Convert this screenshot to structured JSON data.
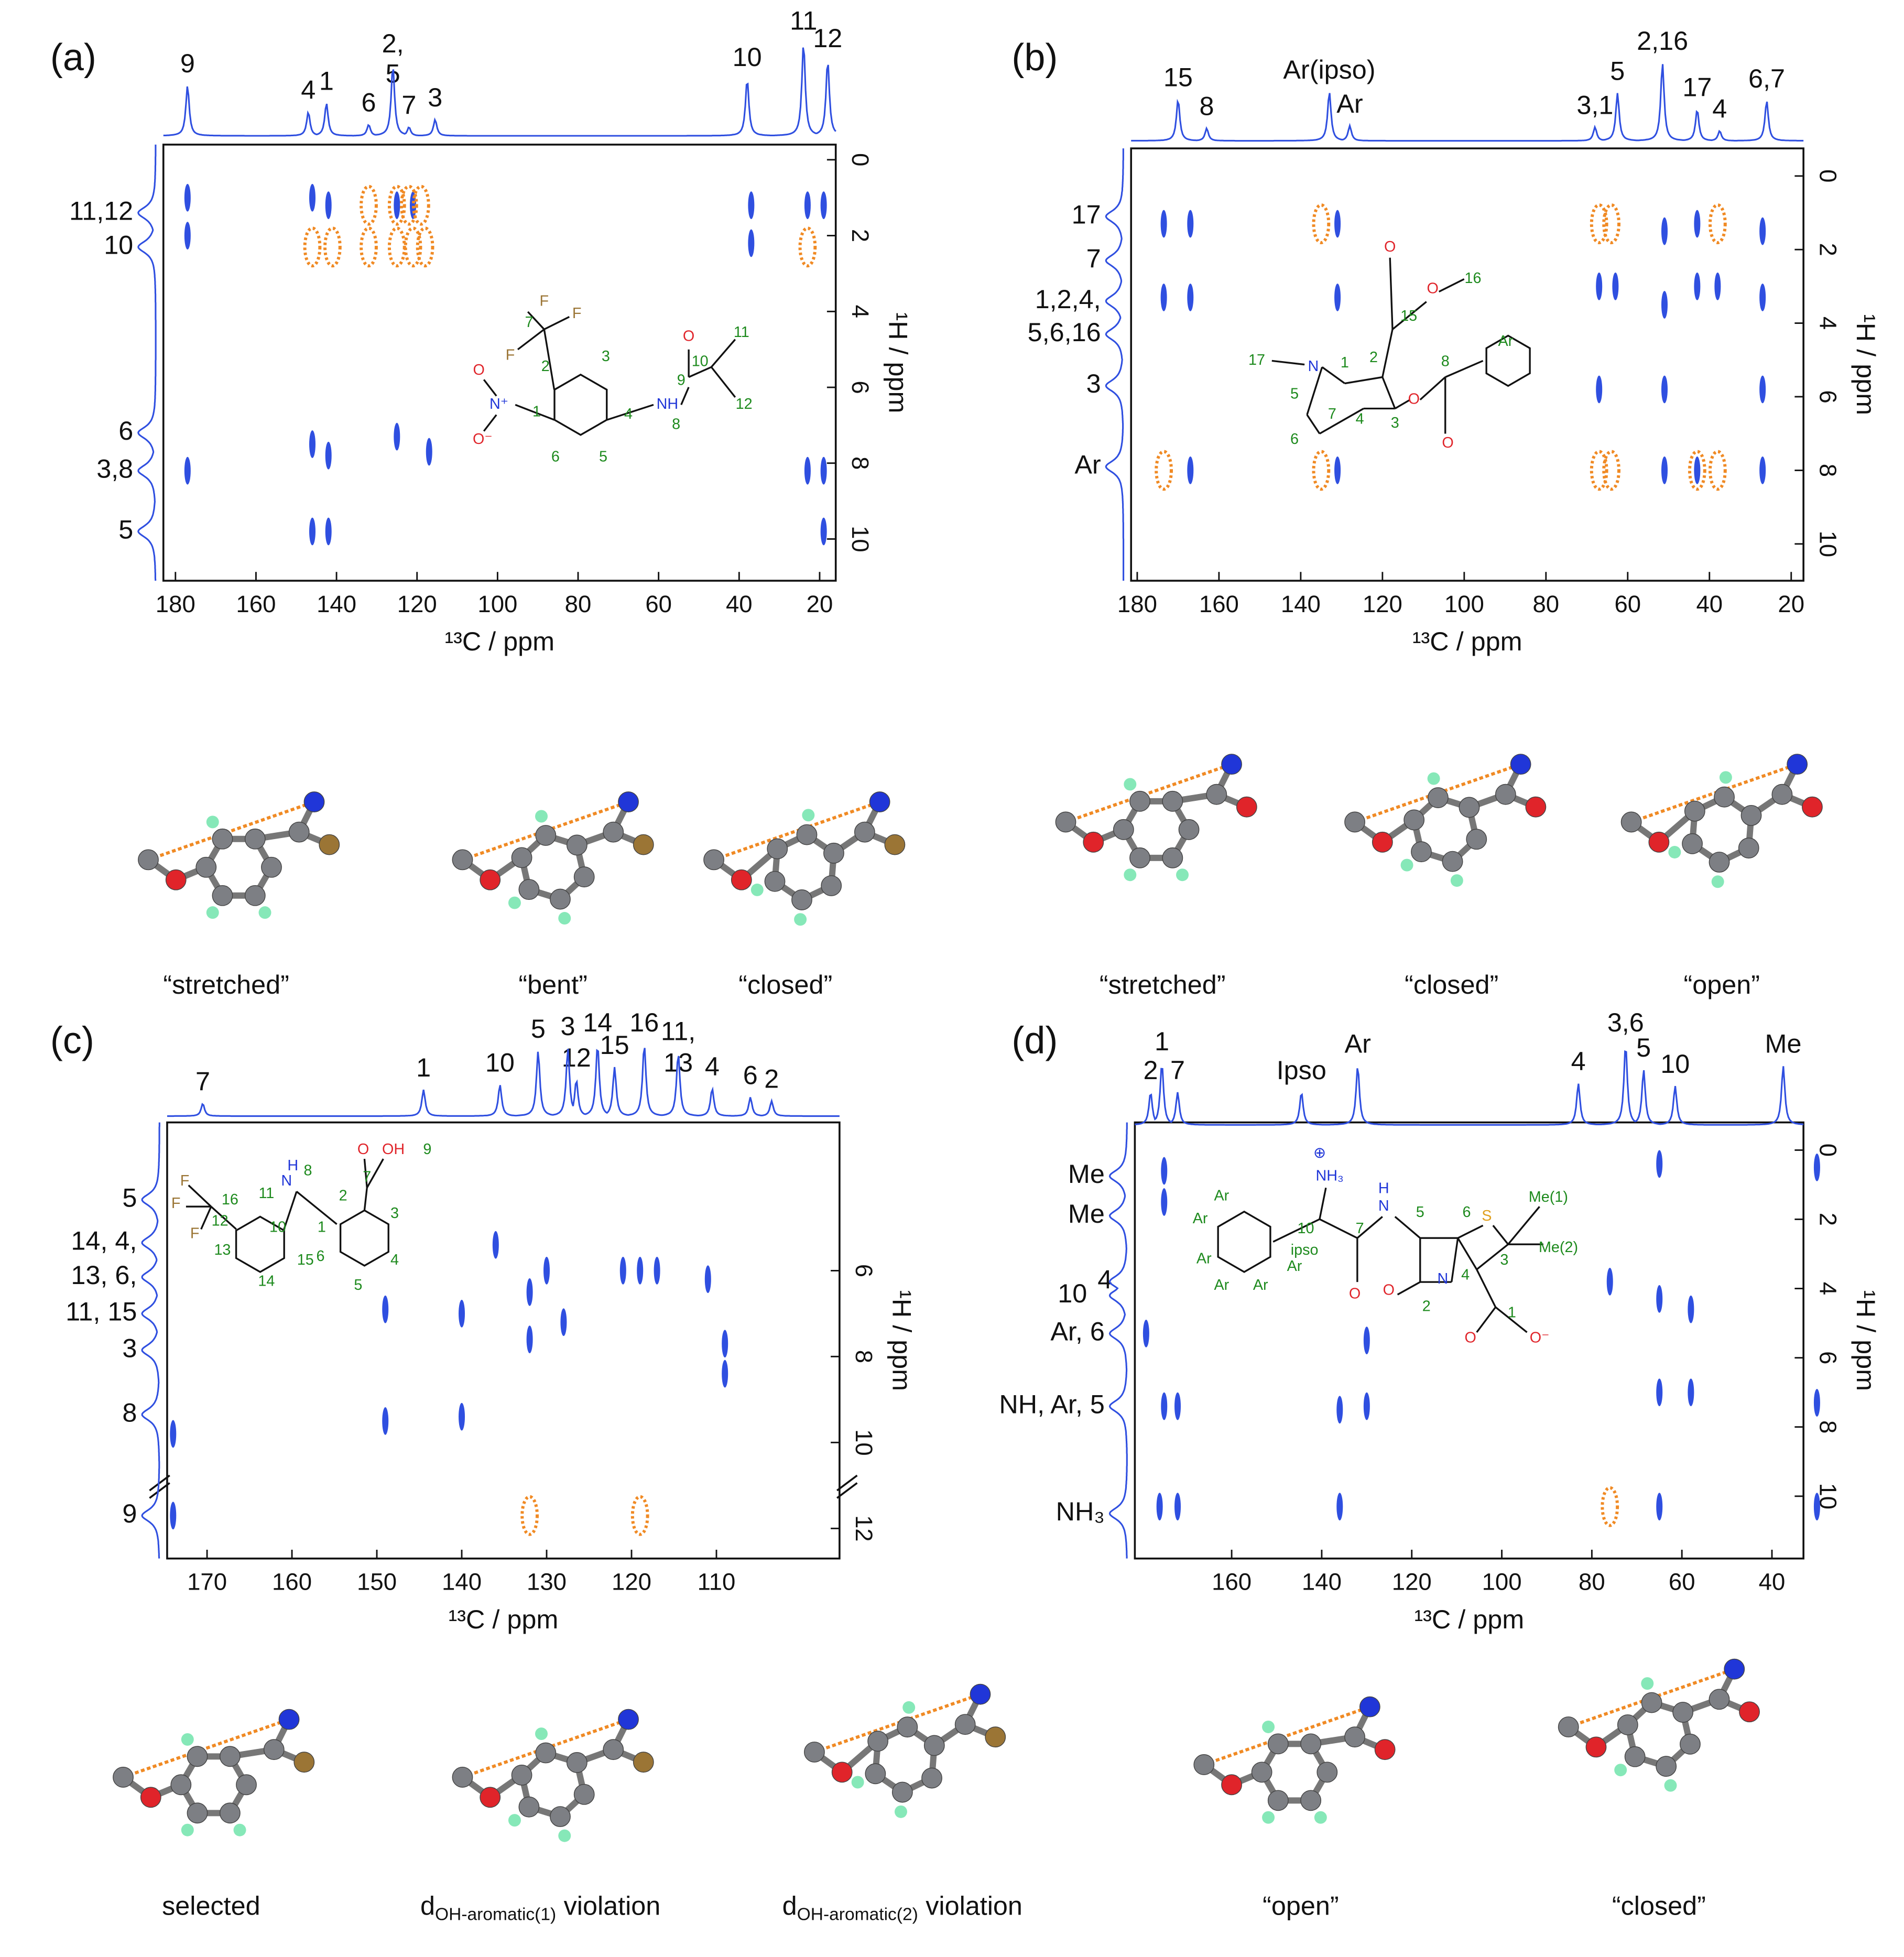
{
  "chart_data": [
    {
      "type": "contour",
      "panel_label": "(a)",
      "xlabel": "¹³C / ppm",
      "ylabel": "¹H / ppm",
      "xlim": [
        183,
        16
      ],
      "ylim": [
        -0.4,
        11.1
      ],
      "xticks": [
        180,
        160,
        140,
        120,
        100,
        80,
        60,
        40,
        20
      ],
      "yticks": [
        0,
        2,
        4,
        6,
        8,
        10
      ],
      "top_labels": [
        {
          "text": "9",
          "x": 177
        },
        {
          "text": "4",
          "x": 147
        },
        {
          "text": "1",
          "x": 142.5
        },
        {
          "text": "6",
          "x": 132
        },
        {
          "text": "2,",
          "x": 126
        },
        {
          "text": "5",
          "x": 126
        },
        {
          "text": "7",
          "x": 122
        },
        {
          "text": "3",
          "x": 115.5
        },
        {
          "text": "10",
          "x": 38
        },
        {
          "text": "11",
          "x": 24
        },
        {
          "text": "12",
          "x": 18
        }
      ],
      "side_labels": [
        {
          "text": "11,12",
          "y": 1.4
        },
        {
          "text": "10",
          "y": 2.3
        },
        {
          "text": "6",
          "y": 7.2
        },
        {
          "text": "3,8",
          "y": 8.2
        },
        {
          "text": "5",
          "y": 9.8
        }
      ],
      "series": [
        {
          "color": "#2f4fe0",
          "x": [
            177,
            177,
            177,
            146,
            146,
            146,
            142,
            142,
            142,
            125,
            125,
            121,
            117,
            37,
            37,
            23,
            19,
            19,
            23,
            19
          ],
          "y": [
            1,
            2,
            8.2,
            1,
            7.5,
            9.8,
            1.2,
            7.8,
            9.8,
            1.2,
            7.3,
            1.2,
            7.7,
            1.2,
            2.2,
            1.2,
            1.2,
            8.2,
            8.2,
            9.8
          ]
        },
        {
          "color": "#f08a24",
          "x": [
            132,
            125,
            122,
            119,
            146,
            141,
            132,
            125,
            121,
            118,
            23
          ],
          "y": [
            1.2,
            1.2,
            1.2,
            1.2,
            2.3,
            2.3,
            2.3,
            2.3,
            2.3,
            2.3,
            2.3
          ]
        }
      ],
      "structure_labels": [
        "F",
        "F",
        "F",
        "7",
        "2",
        "3",
        "N⁺",
        "O",
        "O⁻",
        "1",
        "6",
        "4",
        "5",
        "9",
        "O",
        "NH",
        "8",
        "10",
        "11",
        "12"
      ],
      "captions": [
        "“stretched”",
        "“bent”",
        "“closed”"
      ]
    },
    {
      "type": "contour",
      "panel_label": "(b)",
      "xlabel": "¹³C / ppm",
      "ylabel": "¹H / ppm",
      "xlim": [
        181.5,
        17
      ],
      "ylim": [
        -0.75,
        11
      ],
      "xticks": [
        180,
        160,
        140,
        120,
        100,
        80,
        60,
        40,
        20
      ],
      "yticks": [
        0,
        2,
        4,
        6,
        8,
        10
      ],
      "top_labels": [
        {
          "text": "15",
          "x": 170
        },
        {
          "text": "8",
          "x": 163
        },
        {
          "text": "Ar(ipso)",
          "x": 133
        },
        {
          "text": "Ar",
          "x": 128
        },
        {
          "text": "3,1",
          "x": 68
        },
        {
          "text": "5",
          "x": 62.5
        },
        {
          "text": "2,16",
          "x": 51.5
        },
        {
          "text": "17",
          "x": 43
        },
        {
          "text": "4",
          "x": 37.5
        },
        {
          "text": "6,7",
          "x": 26
        }
      ],
      "side_labels": [
        {
          "text": "17",
          "y": 1.1
        },
        {
          "text": "7",
          "y": 2.3
        },
        {
          "text": "1,2,4,",
          "y": 3.4
        },
        {
          "text": "5,6,16",
          "y": 4.3
        },
        {
          "text": "3",
          "y": 5.7
        },
        {
          "text": "Ar",
          "y": 7.9
        }
      ],
      "series": [
        {
          "color": "#2f4fe0",
          "x": [
            173.5,
            173.5,
            167,
            167,
            167,
            131,
            131,
            131,
            67,
            67,
            63,
            51,
            51,
            51,
            51,
            43,
            43,
            43,
            38,
            27,
            27,
            27,
            27
          ],
          "y": [
            1.3,
            3.3,
            1.3,
            3.3,
            8,
            1.3,
            3.3,
            8,
            3,
            5.8,
            3,
            1.5,
            3.5,
            5.8,
            8,
            1.3,
            3,
            8,
            3,
            1.5,
            3.3,
            5.8,
            8
          ]
        },
        {
          "color": "#f08a24",
          "x": [
            135,
            135,
            173.5,
            67,
            64,
            67,
            64,
            43,
            38,
            38
          ],
          "y": [
            1.3,
            8,
            8,
            1.3,
            1.3,
            8,
            8,
            8,
            8,
            1.3
          ]
        }
      ],
      "structure_labels": [
        "17",
        "N",
        "1",
        "2",
        "15",
        "O",
        "O",
        "16",
        "5",
        "7",
        "4",
        "3",
        "O",
        "8",
        "O",
        "Ar",
        "6"
      ],
      "captions": [
        "“stretched”",
        "“closed”",
        "“open”"
      ]
    },
    {
      "type": "contour",
      "panel_label": "(c)",
      "xlabel": "¹³C / ppm",
      "ylabel": "¹H / ppm",
      "xlim": [
        174.7,
        95.5
      ],
      "ylim": [
        2.55,
        12.7
      ],
      "xticks": [
        170,
        160,
        150,
        140,
        130,
        120,
        110
      ],
      "yticks": [
        6,
        8,
        10,
        12
      ],
      "top_labels": [
        {
          "text": "7",
          "x": 170.5
        },
        {
          "text": "1",
          "x": 144.5
        },
        {
          "text": "10",
          "x": 135.5
        },
        {
          "text": "5",
          "x": 131
        },
        {
          "text": "3",
          "x": 127.5
        },
        {
          "text": "12",
          "x": 126.5
        },
        {
          "text": "14",
          "x": 124
        },
        {
          "text": "15",
          "x": 122
        },
        {
          "text": "16",
          "x": 118.5
        },
        {
          "text": "11,",
          "x": 114.5
        },
        {
          "text": "13",
          "x": 114.5
        },
        {
          "text": "4",
          "x": 110.5
        },
        {
          "text": "6",
          "x": 106
        },
        {
          "text": "2",
          "x": 103.5
        }
      ],
      "side_labels": [
        {
          "text": "5",
          "y": 4.35
        },
        {
          "text": "14, 4,",
          "y": 5.35
        },
        {
          "text": "13, 6,",
          "y": 6.15
        },
        {
          "text": "11, 15",
          "y": 7
        },
        {
          "text": "3",
          "y": 7.85
        },
        {
          "text": "8",
          "y": 9.35
        },
        {
          "text": "9",
          "y": 11.7
        }
      ],
      "series": [
        {
          "color": "#2f4fe0",
          "x": [
            149,
            149,
            140,
            140,
            136,
            132,
            132,
            130,
            128,
            121,
            119,
            117,
            111,
            109,
            109,
            174,
            174
          ],
          "y": [
            6.9,
            9.5,
            7,
            9.4,
            5.4,
            6.5,
            7.6,
            6,
            7.2,
            6,
            6,
            6,
            6.2,
            7.7,
            8.4,
            9.8,
            11.7
          ]
        },
        {
          "color": "#f08a24",
          "x": [
            132,
            119
          ],
          "y": [
            11.7,
            11.7
          ]
        }
      ],
      "structure_labels": [
        "F",
        "F",
        "16",
        "F",
        "12",
        "11",
        "H",
        "8",
        "N",
        "13",
        "10",
        "14",
        "15",
        "1",
        "6",
        "2",
        "7",
        "O",
        "OH",
        "9",
        "3",
        "4",
        "5"
      ],
      "captions": [
        "selected",
        {
          "text": "d",
          "sub": "OH-aromatic(1)",
          "tail": "violation"
        },
        {
          "text": "d",
          "sub": "OH-aromatic(2)",
          "tail": "violation"
        }
      ]
    },
    {
      "type": "contour",
      "panel_label": "(d)",
      "xlabel": "¹³C / ppm",
      "ylabel": "¹H / ppm",
      "xlim": [
        181.5,
        33
      ],
      "ylim": [
        -0.8,
        11.8
      ],
      "xticks": [
        160,
        140,
        120,
        100,
        80,
        60,
        40
      ],
      "yticks": [
        0,
        2,
        4,
        6,
        8,
        10
      ],
      "top_labels": [
        {
          "text": "2",
          "x": 178
        },
        {
          "text": "1",
          "x": 175.5
        },
        {
          "text": "7",
          "x": 172
        },
        {
          "text": "Ipso",
          "x": 144.5
        },
        {
          "text": "Ar",
          "x": 132
        },
        {
          "text": "4",
          "x": 83
        },
        {
          "text": "3,6",
          "x": 72.5
        },
        {
          "text": "5",
          "x": 68.5
        },
        {
          "text": "10",
          "x": 61.5
        },
        {
          "text": "Me",
          "x": 37.5
        }
      ],
      "side_labels": [
        {
          "text": "Me",
          "y": 0.75
        },
        {
          "text": "Me",
          "y": 1.9
        },
        {
          "text": "10",
          "y": 4.2
        },
        {
          "text": "4",
          "y": 3.8
        },
        {
          "text": "Ar, 6",
          "y": 5.3
        },
        {
          "text": "NH, Ar, 5",
          "y": 7.4
        },
        {
          "text": "NH₃",
          "y": 10.5
        }
      ],
      "series": [
        {
          "color": "#2f4fe0",
          "x": [
            30,
            30,
            30,
            65,
            65,
            65,
            65,
            58,
            58,
            130,
            130,
            136,
            136,
            175,
            175,
            175,
            172,
            172,
            176,
            179,
            76
          ],
          "y": [
            0.5,
            7.3,
            10.3,
            0.4,
            4.3,
            7,
            10.3,
            4.6,
            7,
            5.5,
            7.4,
            7.5,
            10.3,
            0.6,
            1.5,
            7.4,
            7.4,
            10.3,
            10.3,
            5.3,
            3.8
          ]
        },
        {
          "color": "#f08a24",
          "x": [
            76
          ],
          "y": [
            10.3
          ]
        }
      ],
      "structure_labels": [
        "⊕",
        "NH₃",
        "H",
        "N",
        "10",
        "7",
        "5",
        "6",
        "S",
        "Me(1)",
        "Me(2)",
        "3",
        "4",
        "N",
        "2",
        "O",
        "O",
        "1",
        "O",
        "O⁻",
        "ipso",
        "Ar",
        "Ar",
        "Ar",
        "Ar",
        "Ar",
        "Ar"
      ],
      "captions": [
        "“open”",
        "“closed”"
      ]
    }
  ]
}
